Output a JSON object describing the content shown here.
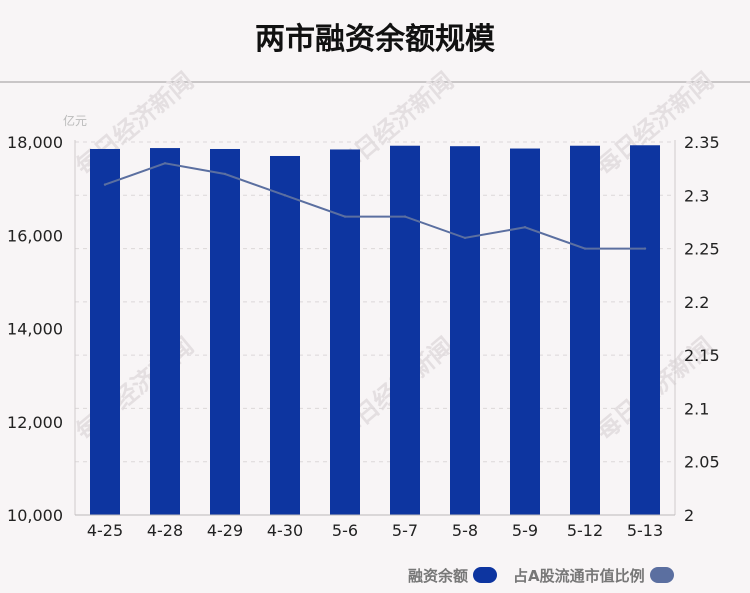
{
  "title": "两市融资余额规模",
  "watermark": "每日经济新闻",
  "colors": {
    "bar": "#0d35a0",
    "line": "#5b6fa0",
    "axis_text": "#222",
    "unit_text": "#bbb"
  },
  "chart_data": {
    "type": "bar",
    "title": "两市融资余额规模",
    "categories": [
      "4-25",
      "4-28",
      "4-29",
      "4-30",
      "5-6",
      "5-7",
      "5-8",
      "5-9",
      "5-12",
      "5-13"
    ],
    "y_left_unit": "亿元",
    "ylim_left": [
      10000,
      18000
    ],
    "yticks_left": [
      10000,
      12000,
      14000,
      16000,
      18000
    ],
    "ylim_right": [
      2,
      2.35
    ],
    "yticks_right": [
      2,
      2.05,
      2.1,
      2.15,
      2.2,
      2.25,
      2.3,
      2.35
    ],
    "series": [
      {
        "name": "融资余额",
        "kind": "bar",
        "axis": "left",
        "values": [
          17850,
          17870,
          17850,
          17700,
          17840,
          17920,
          17910,
          17860,
          17920,
          17930
        ]
      },
      {
        "name": "占A股流通市值比例",
        "kind": "line",
        "axis": "right",
        "values": [
          2.31,
          2.33,
          2.32,
          2.3,
          2.28,
          2.28,
          2.26,
          2.27,
          2.25,
          2.25
        ]
      }
    ],
    "legend_position": "bottom-right"
  }
}
